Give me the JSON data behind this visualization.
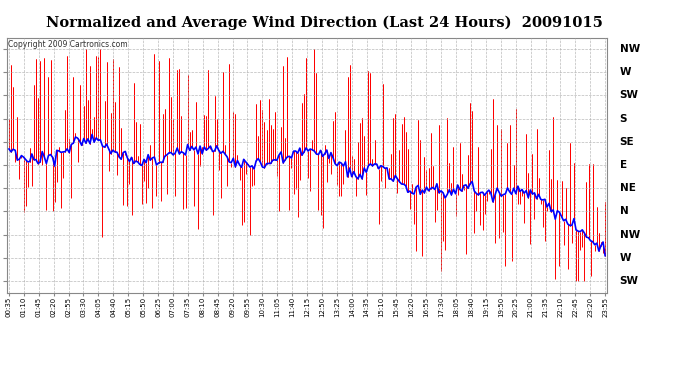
{
  "title": "Normalized and Average Wind Direction (Last 24 Hours)  20091015",
  "copyright": "Copyright 2009 Cartronics.com",
  "ytick_labels": [
    "NW",
    "W",
    "SW",
    "S",
    "SE",
    "E",
    "NE",
    "N",
    "NW",
    "W",
    "SW"
  ],
  "ytick_values": [
    0,
    1,
    2,
    3,
    4,
    5,
    6,
    7,
    8,
    9,
    10
  ],
  "xtick_labels": [
    "00:35",
    "01:10",
    "01:45",
    "02:20",
    "02:55",
    "03:30",
    "04:05",
    "04:40",
    "05:15",
    "05:50",
    "06:25",
    "07:00",
    "07:35",
    "08:10",
    "08:45",
    "09:20",
    "09:55",
    "10:30",
    "11:05",
    "11:40",
    "12:15",
    "12:50",
    "13:25",
    "14:00",
    "14:35",
    "15:10",
    "15:45",
    "16:20",
    "16:55",
    "17:30",
    "18:05",
    "18:40",
    "19:15",
    "19:50",
    "20:25",
    "21:00",
    "21:35",
    "22:10",
    "22:45",
    "23:20",
    "23:55"
  ],
  "plot_bg_color": "#ffffff",
  "grid_color": "#aaaaaa",
  "bar_color": "#ff0000",
  "line_color": "#0000ff",
  "title_bg": "#ffffff",
  "copyright_color": "#555555",
  "ylim": [
    -0.5,
    10.5
  ],
  "figsize": [
    6.9,
    3.75
  ],
  "dpi": 100
}
